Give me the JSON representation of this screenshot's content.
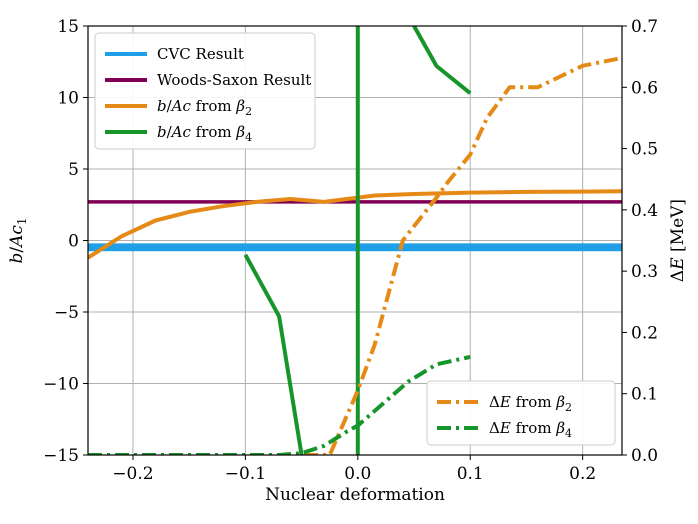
{
  "chart_data": {
    "type": "line",
    "xlabel": "Nuclear deformation",
    "ylabel_left": "b/Ac₁",
    "ylabel_right": "ΔE [MeV]",
    "xlim": [
      -0.24,
      0.235
    ],
    "ylim_left": [
      -15,
      15
    ],
    "ylim_right": [
      0.0,
      0.7
    ],
    "grid": true,
    "x_ticks": [
      -0.2,
      -0.1,
      0.0,
      0.1,
      0.2
    ],
    "x_tick_labels": [
      "−0.2",
      "−0.1",
      "0.0",
      "0.1",
      "0.2"
    ],
    "y_left_ticks": [
      -15,
      -10,
      -5,
      0,
      5,
      10,
      15
    ],
    "y_left_tick_labels": [
      "−15",
      "−10",
      "−5",
      "0",
      "5",
      "10",
      "15"
    ],
    "y_right_ticks": [
      0.0,
      0.1,
      0.2,
      0.3,
      0.4,
      0.5,
      0.6,
      0.7
    ],
    "y_right_tick_labels": [
      "0.0",
      "0.1",
      "0.2",
      "0.3",
      "0.4",
      "0.5",
      "0.6",
      "0.7"
    ],
    "series": [
      {
        "name": "CVC Result",
        "axis": "left",
        "style": "band",
        "color": "#1f9fe8",
        "y_low": -0.75,
        "y_high": -0.2
      },
      {
        "name": "Woods-Saxon Result",
        "axis": "left",
        "style": "hline",
        "color": "#800055",
        "y": 2.7
      },
      {
        "name": "b/Ac from β₂",
        "axis": "left",
        "style": "solid",
        "color": "#e58a16",
        "x": [
          -0.24,
          -0.21,
          -0.18,
          -0.15,
          -0.12,
          -0.09,
          -0.06,
          -0.03,
          0.0,
          0.015,
          0.05,
          0.1,
          0.15,
          0.2,
          0.235
        ],
        "y": [
          -1.2,
          0.3,
          1.4,
          2.0,
          2.4,
          2.7,
          2.9,
          2.7,
          3.0,
          3.15,
          3.25,
          3.35,
          3.4,
          3.42,
          3.45
        ]
      },
      {
        "name": "b/Ac from β₄",
        "axis": "left",
        "style": "solid",
        "color": "#16962a",
        "segments": [
          {
            "x": [
              -0.1,
              -0.07,
              -0.05
            ],
            "y": [
              -1.0,
              -5.3,
              -15.0
            ]
          },
          {
            "x": [
              0.0,
              0.0
            ],
            "y": [
              -15.0,
              15.0
            ]
          },
          {
            "x": [
              0.05,
              0.07,
              0.1
            ],
            "y": [
              15.0,
              12.2,
              10.3
            ]
          }
        ]
      },
      {
        "name": "ΔE from β₂",
        "axis": "right",
        "style": "dashdot",
        "color": "#e58a16",
        "x": [
          -0.24,
          -0.2,
          -0.15,
          -0.1,
          -0.05,
          -0.03,
          -0.025,
          0.0,
          0.015,
          0.04,
          0.07,
          0.08,
          0.1,
          0.115,
          0.135,
          0.16,
          0.2,
          0.235
        ],
        "y": [
          0.0,
          0.0,
          0.0,
          0.0,
          0.0,
          0.0,
          0.0,
          0.105,
          0.18,
          0.35,
          0.42,
          0.445,
          0.49,
          0.55,
          0.6,
          0.6,
          0.635,
          0.648
        ]
      },
      {
        "name": "ΔE from β₄",
        "axis": "right",
        "style": "dashdot",
        "color": "#16962a",
        "x": [
          -0.24,
          -0.2,
          -0.15,
          -0.1,
          -0.07,
          -0.05,
          -0.03,
          -0.01,
          0.0,
          0.02,
          0.045,
          0.07,
          0.1
        ],
        "y": [
          0.0,
          0.0,
          0.0,
          0.0,
          0.0,
          0.003,
          0.015,
          0.038,
          0.048,
          0.08,
          0.12,
          0.148,
          0.16
        ]
      }
    ],
    "legend_upper": {
      "position": "upper-left",
      "entries": [
        {
          "label_parts": [
            {
              "t": "CVC Result"
            }
          ],
          "color": "#1f9fe8",
          "style": "solid"
        },
        {
          "label_parts": [
            {
              "t": "Woods-Saxon Result"
            }
          ],
          "color": "#800055",
          "style": "solid"
        },
        {
          "label_parts": [
            {
              "t": "b",
              "i": true
            },
            {
              "t": "/"
            },
            {
              "t": "Ac",
              "i": true
            },
            {
              "t": " from "
            },
            {
              "t": "β",
              "i": true
            },
            {
              "t": "2",
              "sub": true
            }
          ],
          "color": "#e58a16",
          "style": "solid"
        },
        {
          "label_parts": [
            {
              "t": "b",
              "i": true
            },
            {
              "t": "/"
            },
            {
              "t": "Ac",
              "i": true
            },
            {
              "t": " from "
            },
            {
              "t": "β",
              "i": true
            },
            {
              "t": "4",
              "sub": true
            }
          ],
          "color": "#16962a",
          "style": "solid"
        }
      ]
    },
    "legend_lower": {
      "position": "lower-right",
      "entries": [
        {
          "label_parts": [
            {
              "t": "Δ"
            },
            {
              "t": "E",
              "i": true
            },
            {
              "t": " from "
            },
            {
              "t": "β",
              "i": true
            },
            {
              "t": "2",
              "sub": true
            }
          ],
          "color": "#e58a16",
          "style": "dashdot"
        },
        {
          "label_parts": [
            {
              "t": "Δ"
            },
            {
              "t": "E",
              "i": true
            },
            {
              "t": " from "
            },
            {
              "t": "β",
              "i": true
            },
            {
              "t": "4",
              "sub": true
            }
          ],
          "color": "#16962a",
          "style": "dashdot"
        }
      ]
    }
  }
}
